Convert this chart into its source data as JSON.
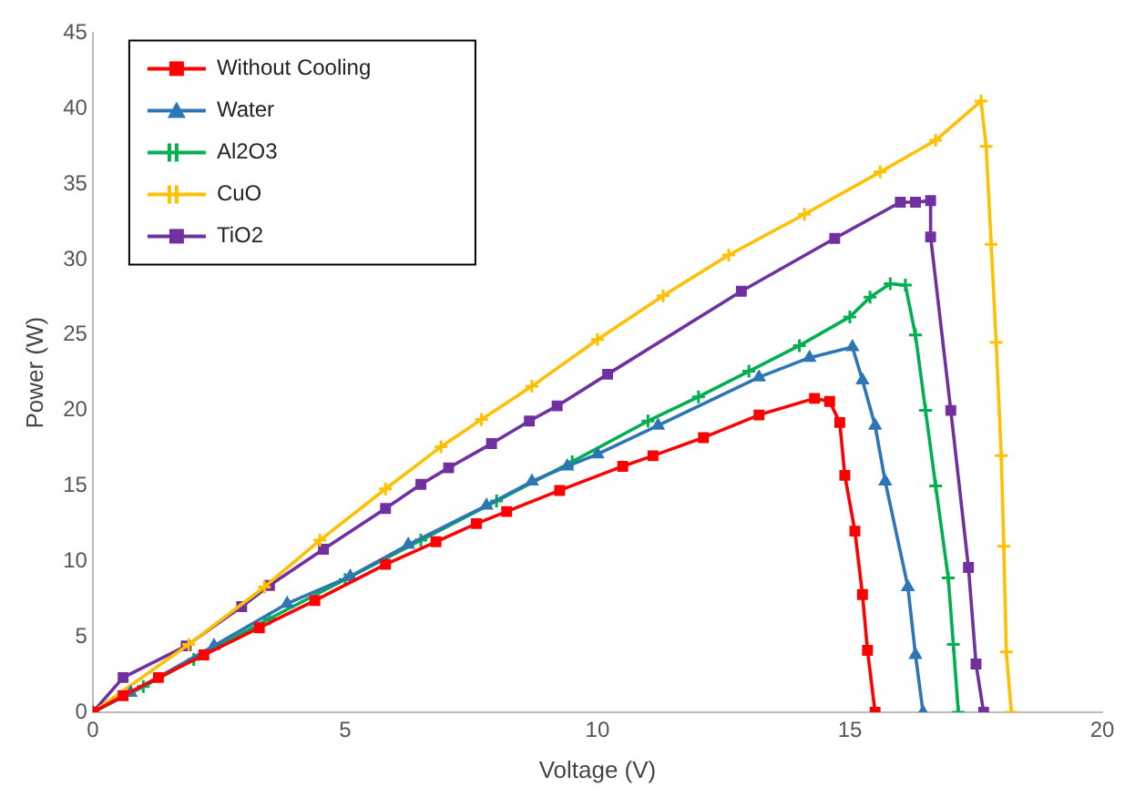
{
  "chart_data": {
    "type": "line",
    "xlabel": "Voltage (V)",
    "ylabel": "Power (W)",
    "xlim": [
      0,
      20
    ],
    "xticks": [
      0,
      5,
      10,
      15,
      20
    ],
    "ylim": [
      0,
      45
    ],
    "yticks": [
      0,
      5,
      10,
      15,
      20,
      25,
      30,
      35,
      40,
      45
    ],
    "grid": false,
    "legend": "top left",
    "line_style": "solid",
    "series": [
      {
        "name": "Without Cooling",
        "color": "#ff0000",
        "marker": "square",
        "x": [
          0,
          0.6,
          1.3,
          2.2,
          3.3,
          4.4,
          5.8,
          6.8,
          7.6,
          8.2,
          9.25,
          10.5,
          11.1,
          12.1,
          13.2,
          14.3,
          14.6,
          14.8,
          14.9,
          15.1,
          15.25,
          15.35,
          15.5
        ],
        "values": [
          0,
          1.1,
          2.3,
          3.8,
          5.6,
          7.4,
          9.8,
          11.3,
          12.5,
          13.3,
          14.7,
          16.3,
          17,
          18.2,
          19.7,
          20.8,
          20.6,
          19.2,
          15.7,
          12,
          7.8,
          4.1,
          0
        ]
      },
      {
        "name": "Water",
        "color": "#2e75b6",
        "marker": "triangle",
        "x": [
          0,
          0.75,
          2.4,
          3.85,
          5.1,
          6.25,
          7.8,
          8.7,
          9.4,
          10,
          11.2,
          13.2,
          14.2,
          15.05,
          15.25,
          15.5,
          15.7,
          16.15,
          16.3,
          16.45
        ],
        "values": [
          0,
          1.3,
          4.4,
          7.2,
          9,
          11.1,
          13.7,
          15.3,
          16.3,
          17.1,
          19,
          22.2,
          23.5,
          24.2,
          22,
          19,
          15.3,
          8.3,
          3.8,
          0
        ]
      },
      {
        "name": "Al2O3",
        "color": "#00b050",
        "marker": "cross",
        "x": [
          0,
          1,
          2,
          3.5,
          5,
          6.5,
          8,
          9.5,
          11,
          12,
          13,
          14,
          15,
          15.4,
          15.8,
          16.1,
          16.3,
          16.5,
          16.7,
          16.95,
          17.05,
          17.15
        ],
        "values": [
          0,
          1.7,
          3.5,
          6.2,
          8.8,
          11.4,
          14,
          16.6,
          19.3,
          20.9,
          22.6,
          24.3,
          26.2,
          27.5,
          28.4,
          28.3,
          25,
          20,
          15,
          8.9,
          4.5,
          0
        ]
      },
      {
        "name": "CuO",
        "color": "#ffc000",
        "marker": "cross",
        "x": [
          0,
          1.9,
          3.4,
          4.5,
          5.8,
          6.9,
          7.7,
          8.7,
          10,
          11.3,
          12.6,
          14.1,
          15.6,
          16.7,
          17.6,
          17.7,
          17.8,
          17.9,
          18,
          18.05,
          18.1,
          18.2
        ],
        "values": [
          0,
          4.5,
          8.3,
          11.4,
          14.8,
          17.6,
          19.4,
          21.6,
          24.7,
          27.6,
          30.3,
          33,
          35.8,
          37.9,
          40.5,
          37.5,
          31,
          24.5,
          17,
          11,
          4,
          0
        ]
      },
      {
        "name": "TiO2",
        "color": "#7030a0",
        "marker": "square",
        "x": [
          0,
          0.6,
          1.85,
          2.95,
          3.5,
          4.57,
          5.8,
          6.5,
          7.05,
          7.9,
          8.65,
          9.2,
          10.2,
          12.85,
          14.7,
          16,
          16.3,
          16.6,
          16.6,
          17,
          17.35,
          17.5,
          17.65
        ],
        "values": [
          0,
          2.3,
          4.4,
          7,
          8.4,
          10.8,
          13.5,
          15.1,
          16.2,
          17.8,
          19.3,
          20.3,
          22.4,
          27.9,
          31.4,
          33.8,
          33.8,
          33.9,
          31.5,
          20,
          9.6,
          3.2,
          0
        ]
      }
    ]
  }
}
